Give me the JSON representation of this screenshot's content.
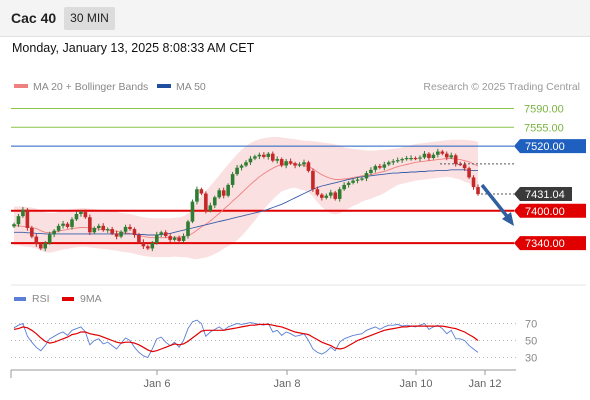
{
  "header": {
    "symbol": "Cac 40",
    "timeframe": "30 MIN"
  },
  "datetime": "Monday, January 13, 2025 8:08:33 AM CET",
  "price_legend": [
    {
      "label": "MA 20 + Bollinger Bands",
      "color": "#f08080"
    },
    {
      "label": "MA 50",
      "color": "#1f4e9c"
    }
  ],
  "rsi_legend": [
    {
      "label": "RSI",
      "color": "#5b7fd6"
    },
    {
      "label": "9MA",
      "color": "#e00000"
    }
  ],
  "copyright": "Research © 2025 Trading Central",
  "colors": {
    "up": "#2e7d32",
    "down": "#c62828",
    "band": "#fadadd",
    "resistance_green": "#8bc34a",
    "pivot_blue": "#1f5fbf",
    "support_red": "#e00000",
    "arrow": "#2f5f9e"
  },
  "chart_data": [
    {
      "type": "candlestick",
      "title": "Cac 40 30 MIN",
      "x_tick_labels": [
        "Jan 6",
        "Jan 8",
        "Jan 10",
        "Jan 12"
      ],
      "y_range": [
        7290,
        7615
      ],
      "current_price": 7431.04,
      "levels": [
        {
          "value": 7590.0,
          "label": "7590.00",
          "style": "resistance"
        },
        {
          "value": 7555.0,
          "label": "7555.00",
          "style": "resistance"
        },
        {
          "value": 7520.0,
          "label": "7520.00",
          "style": "pivot"
        },
        {
          "value": 7400.0,
          "label": "7400.00",
          "style": "support"
        },
        {
          "value": 7340.0,
          "label": "7340.00",
          "style": "support"
        }
      ],
      "closes": [
        7375,
        7390,
        7402,
        7368,
        7352,
        7338,
        7330,
        7340,
        7356,
        7363,
        7372,
        7376,
        7370,
        7384,
        7394,
        7398,
        7388,
        7360,
        7368,
        7372,
        7364,
        7366,
        7358,
        7352,
        7361,
        7370,
        7366,
        7355,
        7342,
        7334,
        7330,
        7340,
        7356,
        7360,
        7353,
        7346,
        7350,
        7344,
        7353,
        7380,
        7417,
        7440,
        7432,
        7400,
        7410,
        7425,
        7438,
        7428,
        7448,
        7468,
        7480,
        7484,
        7490,
        7497,
        7501,
        7504,
        7500,
        7506,
        7493,
        7496,
        7484,
        7492,
        7488,
        7484,
        7486,
        7490,
        7474,
        7440,
        7430,
        7424,
        7428,
        7434,
        7422,
        7440,
        7448,
        7452,
        7456,
        7458,
        7460,
        7470,
        7476,
        7483,
        7480,
        7486,
        7490,
        7492,
        7494,
        7496,
        7498,
        7498,
        7497,
        7499,
        7506,
        7498,
        7504,
        7510,
        7506,
        7499,
        7503,
        7487,
        7486,
        7479,
        7462,
        7444,
        7431
      ],
      "ma20": [
        7372,
        7372,
        7371,
        7370,
        7369,
        7367,
        7363,
        7360,
        7359,
        7360,
        7362,
        7364,
        7365,
        7367,
        7368,
        7369,
        7369,
        7368,
        7367,
        7366,
        7365,
        7364,
        7363,
        7362,
        7360,
        7359,
        7358,
        7356,
        7354,
        7352,
        7351,
        7350,
        7350,
        7350,
        7350,
        7350,
        7351,
        7351,
        7352,
        7354,
        7358,
        7364,
        7370,
        7375,
        7381,
        7388,
        7395,
        7403,
        7410,
        7418,
        7425,
        7433,
        7441,
        7449,
        7456,
        7463,
        7469,
        7474,
        7479,
        7483,
        7486,
        7487,
        7488,
        7488,
        7486,
        7484,
        7482,
        7478,
        7472,
        7467,
        7463,
        7460,
        7458,
        7458,
        7459,
        7460,
        7462,
        7463,
        7465,
        7466,
        7467,
        7469,
        7471,
        7473,
        7476,
        7479,
        7482,
        7484,
        7486,
        7488,
        7490,
        7491,
        7492,
        7493,
        7494,
        7495,
        7496,
        7497,
        7497,
        7496,
        7495,
        7493,
        7491,
        7487,
        7483
      ],
      "bb_upper": [
        7408,
        7408,
        7408,
        7407,
        7406,
        7404,
        7400,
        7397,
        7396,
        7396,
        7398,
        7400,
        7401,
        7403,
        7404,
        7405,
        7405,
        7404,
        7403,
        7402,
        7401,
        7400,
        7399,
        7398,
        7396,
        7395,
        7394,
        7392,
        7390,
        7388,
        7387,
        7386,
        7386,
        7386,
        7386,
        7386,
        7387,
        7388,
        7390,
        7395,
        7405,
        7418,
        7428,
        7437,
        7446,
        7456,
        7466,
        7476,
        7486,
        7496,
        7505,
        7513,
        7520,
        7526,
        7530,
        7533,
        7535,
        7536,
        7537,
        7537,
        7536,
        7535,
        7534,
        7533,
        7532,
        7530,
        7530,
        7529,
        7528,
        7527,
        7526,
        7525,
        7523,
        7521,
        7518,
        7516,
        7515,
        7514,
        7513,
        7512,
        7512,
        7512,
        7513,
        7513,
        7514,
        7515,
        7516,
        7518,
        7520,
        7522,
        7524,
        7525,
        7526,
        7527,
        7528,
        7529,
        7530,
        7531,
        7532,
        7532,
        7532,
        7532,
        7531,
        7530,
        7528
      ],
      "bb_lower": [
        7336,
        7336,
        7334,
        7333,
        7332,
        7330,
        7326,
        7323,
        7322,
        7324,
        7326,
        7328,
        7329,
        7331,
        7332,
        7333,
        7333,
        7332,
        7331,
        7330,
        7329,
        7328,
        7327,
        7326,
        7324,
        7323,
        7322,
        7320,
        7318,
        7316,
        7315,
        7314,
        7314,
        7314,
        7314,
        7314,
        7315,
        7314,
        7314,
        7313,
        7311,
        7310,
        7312,
        7313,
        7316,
        7320,
        7324,
        7330,
        7334,
        7340,
        7345,
        7353,
        7362,
        7372,
        7382,
        7393,
        7403,
        7412,
        7421,
        7429,
        7436,
        7439,
        7442,
        7443,
        7440,
        7438,
        7434,
        7427,
        7416,
        7407,
        7400,
        7395,
        7393,
        7395,
        7400,
        7404,
        7409,
        7412,
        7417,
        7420,
        7422,
        7426,
        7429,
        7433,
        7438,
        7443,
        7448,
        7450,
        7452,
        7454,
        7456,
        7457,
        7458,
        7459,
        7460,
        7461,
        7462,
        7463,
        7462,
        7460,
        7458,
        7454,
        7451,
        7444,
        7438
      ],
      "ma50": [
        7360,
        7360,
        7360,
        7359,
        7359,
        7358,
        7358,
        7357,
        7357,
        7357,
        7357,
        7357,
        7357,
        7357,
        7357,
        7357,
        7357,
        7357,
        7357,
        7357,
        7357,
        7357,
        7357,
        7357,
        7357,
        7357,
        7357,
        7357,
        7356,
        7356,
        7355,
        7355,
        7355,
        7356,
        7357,
        7358,
        7360,
        7362,
        7364,
        7366,
        7368,
        7370,
        7372,
        7374,
        7376,
        7378,
        7380,
        7382,
        7384,
        7386,
        7388,
        7390,
        7392,
        7394,
        7396,
        7398,
        7400,
        7403,
        7406,
        7409,
        7412,
        7416,
        7420,
        7424,
        7428,
        7432,
        7436,
        7440,
        7443,
        7446,
        7448,
        7450,
        7452,
        7454,
        7456,
        7458,
        7460,
        7462,
        7463,
        7464,
        7465,
        7466,
        7467,
        7468,
        7469,
        7470,
        7470,
        7471,
        7471,
        7472,
        7472,
        7473,
        7473,
        7474,
        7474,
        7475,
        7475,
        7475,
        7476,
        7476,
        7476,
        7476,
        7475,
        7475,
        7475
      ]
    },
    {
      "type": "line",
      "title": "RSI",
      "y_range": [
        20,
        80
      ],
      "y_tick_labels": [
        "70",
        "50",
        "30"
      ],
      "series": [
        {
          "name": "RSI",
          "values": [
            65,
            68,
            70,
            55,
            48,
            42,
            38,
            44,
            52,
            55,
            58,
            60,
            56,
            62,
            64,
            66,
            60,
            45,
            50,
            52,
            46,
            48,
            44,
            40,
            47,
            53,
            50,
            42,
            36,
            32,
            30,
            40,
            52,
            54,
            48,
            44,
            48,
            42,
            50,
            64,
            72,
            74,
            70,
            55,
            60,
            63,
            66,
            62,
            66,
            68,
            70,
            69,
            70,
            71,
            70,
            69,
            68,
            70,
            60,
            62,
            56,
            60,
            58,
            55,
            56,
            58,
            50,
            40,
            36,
            34,
            37,
            42,
            38,
            48,
            52,
            54,
            56,
            57,
            58,
            62,
            64,
            66,
            63,
            66,
            68,
            68,
            69,
            67,
            68,
            67,
            66,
            68,
            70,
            63,
            66,
            68,
            64,
            58,
            62,
            52,
            52,
            50,
            44,
            40,
            36
          ]
        },
        {
          "name": "9MA",
          "values": [
            63,
            64,
            66,
            65,
            62,
            58,
            53,
            49,
            47,
            48,
            50,
            52,
            54,
            57,
            58,
            60,
            60,
            58,
            57,
            56,
            54,
            52,
            50,
            48,
            47,
            48,
            48,
            47,
            45,
            42,
            39,
            37,
            38,
            40,
            42,
            44,
            46,
            45,
            46,
            49,
            53,
            57,
            61,
            62,
            62,
            62,
            62,
            62,
            63,
            64,
            65,
            66,
            67,
            68,
            68,
            69,
            69,
            69,
            68,
            67,
            66,
            64,
            62,
            60,
            59,
            58,
            57,
            54,
            51,
            48,
            46,
            44,
            41,
            40,
            41,
            44,
            47,
            50,
            52,
            54,
            56,
            58,
            60,
            62,
            63,
            64,
            65,
            66,
            66,
            67,
            67,
            67,
            67,
            67,
            67,
            67,
            67,
            66,
            65,
            64,
            62,
            60,
            57,
            54,
            50
          ]
        }
      ]
    }
  ]
}
